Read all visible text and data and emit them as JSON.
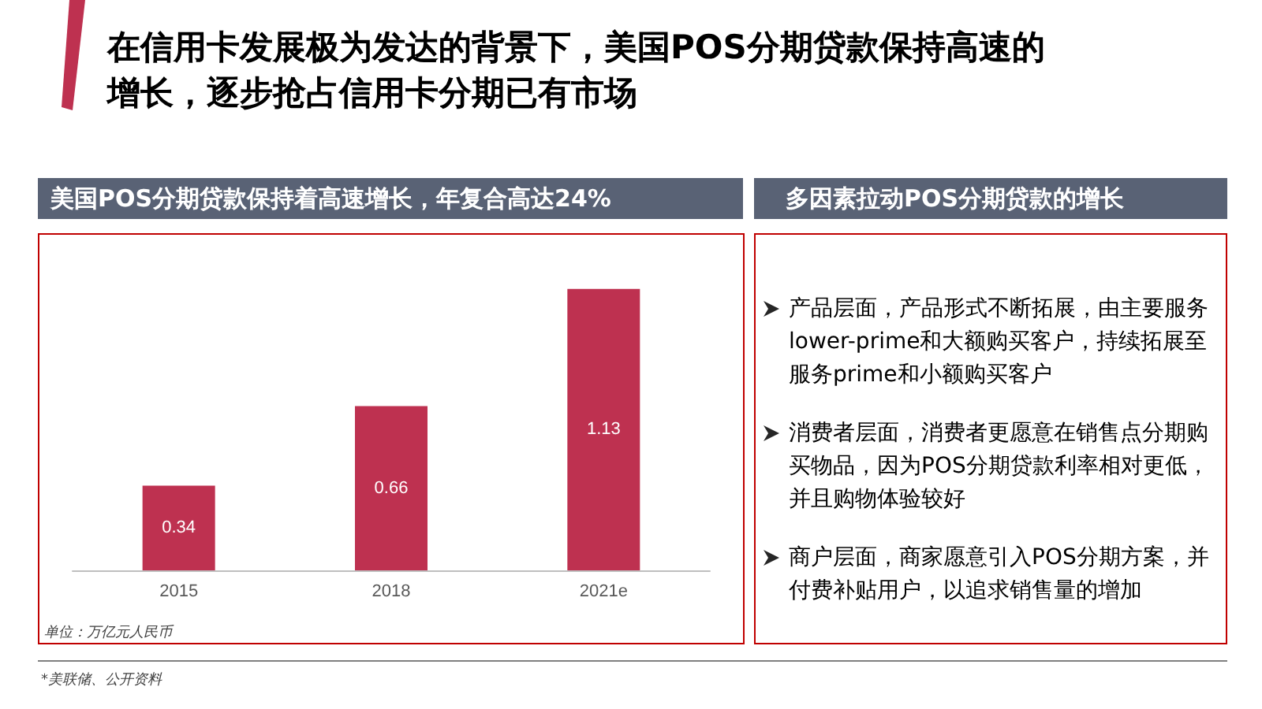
{
  "chart_data": [
    {
      "type": "bar",
      "title": "在信用卡发展极为发达的背景下，美国POS分期贷款保持高速的增长，逐步抢占信用卡分期已有市场",
      "subtitle": "美国POS分期贷款保持着高速增长，年复合高达24%",
      "categories": [
        "2015",
        "2018",
        "2021e"
      ],
      "values": [
        0.34,
        0.66,
        1.13
      ],
      "color": "#be3150",
      "data_labels": true,
      "annotations": [
        "单位：万亿元人民币",
        "*美联储、公开资料"
      ]
    },
    {
      "type": "other",
      "title": "多因素拉动POS分期贷款的增长",
      "annotations": [
        "产品层面，产品形式不断拓展，由主要服务lower-prime和大额购买客户，持续拓展至服务prime和小额购买客户",
        "消费者层面，消费者更愿意在销售点分期购买物品，因为POS分期贷款利率相对更低，并且购物体验较好",
        "商户层面，商家愿意引入POS分期方案，并付费补贴用户，以追求销售量的增加"
      ]
    }
  ]
}
